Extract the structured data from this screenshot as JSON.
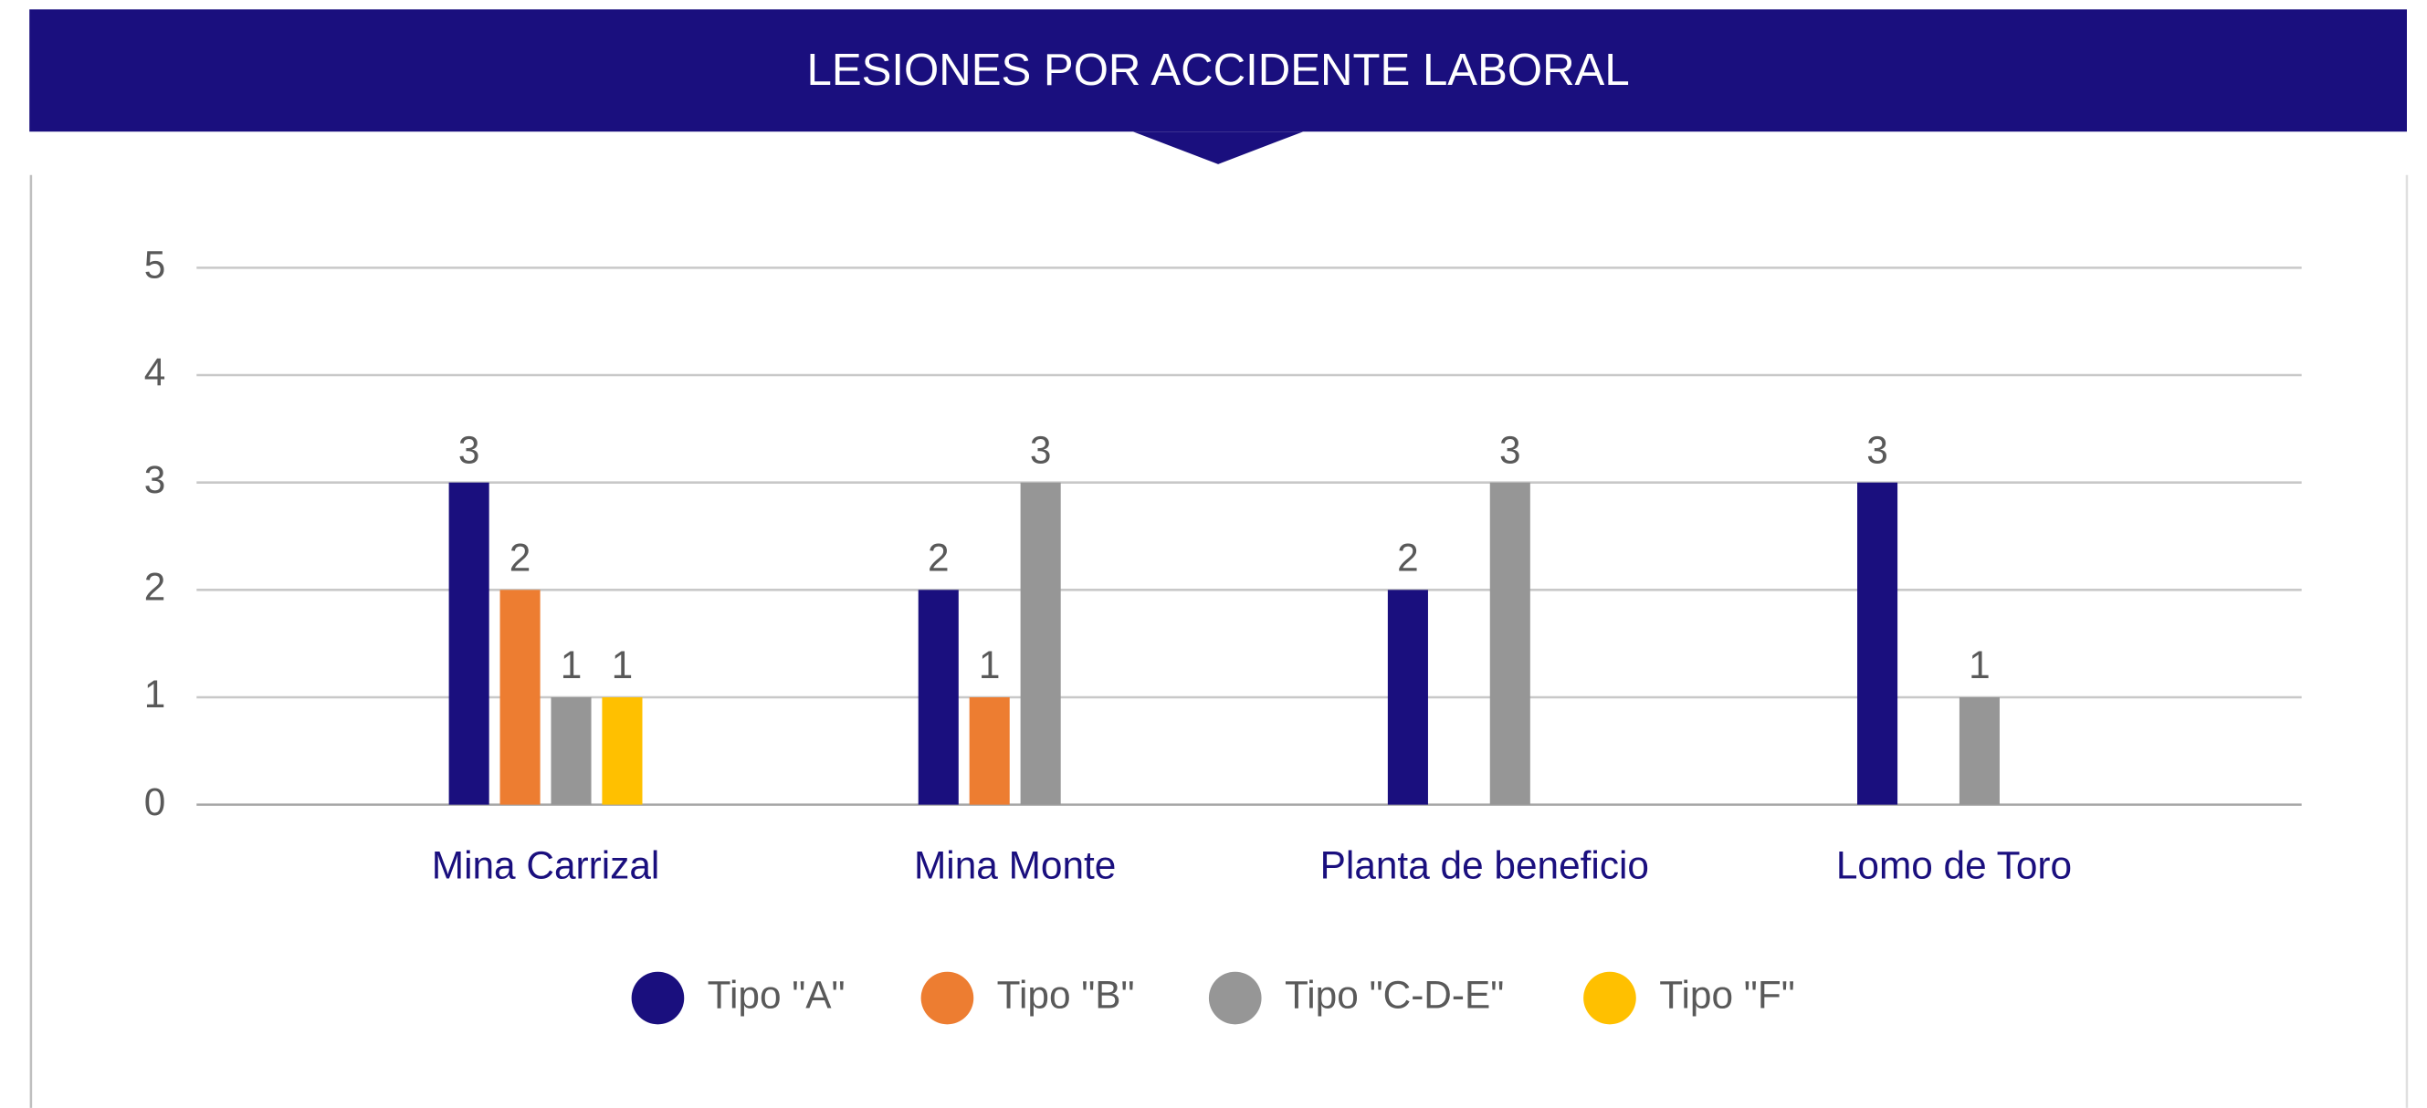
{
  "chart_data": {
    "type": "bar",
    "title": "LESIONES POR ACCIDENTE LABORAL",
    "categories": [
      "Mina Carrizal",
      "Mina Monte",
      "Planta de beneficio",
      "Lomo de Toro"
    ],
    "series": [
      {
        "name": "Tipo \"A\"",
        "color": "#1a0f7e",
        "values": [
          3,
          2,
          2,
          3
        ]
      },
      {
        "name": "Tipo \"B\"",
        "color": "#ed7d31",
        "values": [
          2,
          1,
          null,
          null
        ]
      },
      {
        "name": "Tipo \"C-D-E\"",
        "color": "#969696",
        "values": [
          1,
          3,
          3,
          1
        ]
      },
      {
        "name": "Tipo \"F\"",
        "color": "#ffc000",
        "values": [
          1,
          null,
          null,
          null
        ]
      }
    ],
    "ylim": [
      0,
      5
    ],
    "yticks": [
      0,
      1,
      2,
      3,
      4,
      5
    ],
    "grid": true,
    "legend": "bottom"
  }
}
